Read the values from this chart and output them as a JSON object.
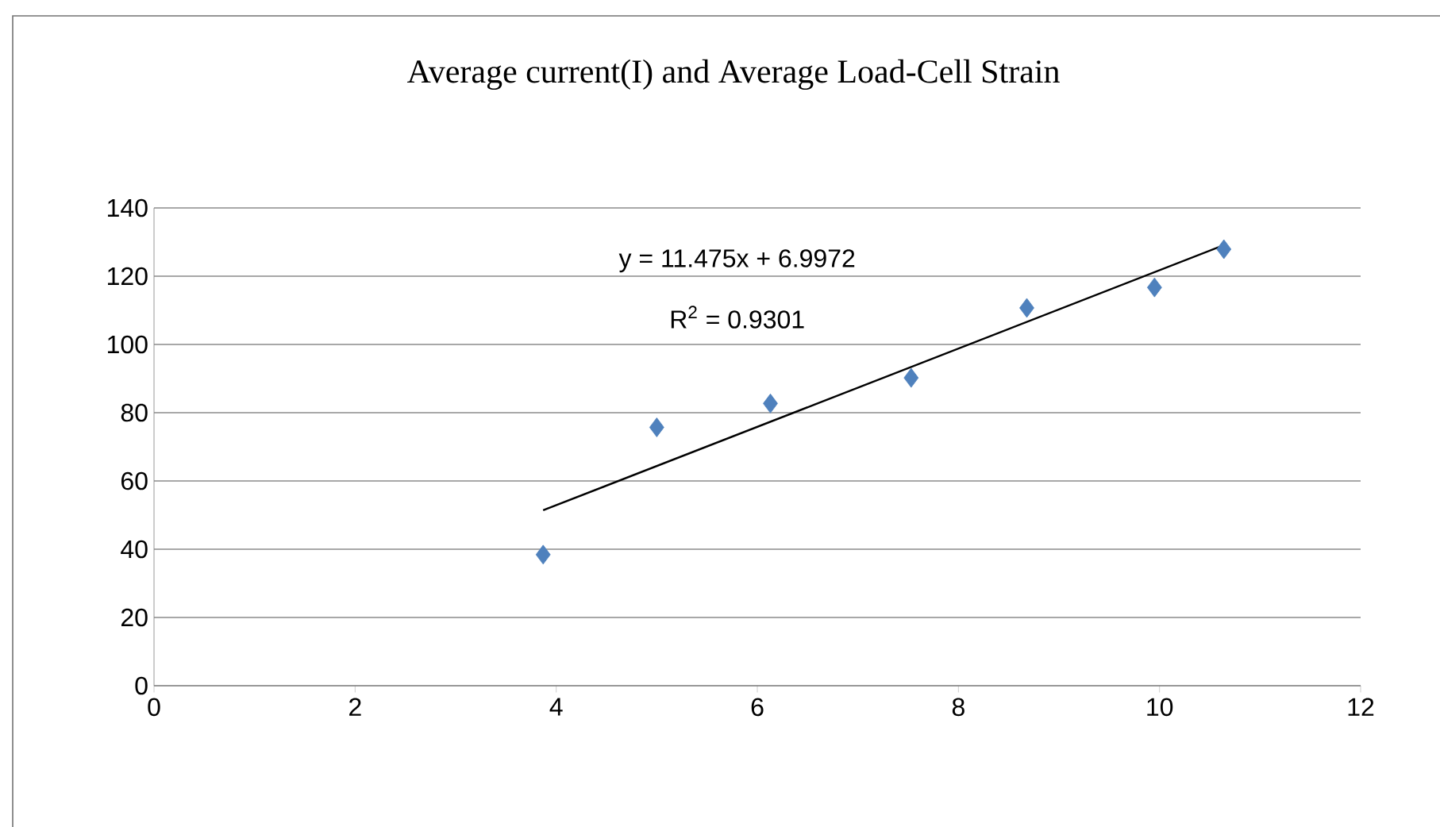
{
  "chart_data": {
    "type": "scatter",
    "title": "Average current(I) and Average Load-Cell Strain",
    "annotations": [
      "y = 11.475x + 6.9972",
      "R$^{2}$ = 0.9301"
    ],
    "series": [
      {
        "color": "#4f81bd",
        "marker": "diamond",
        "x": [
          3.87,
          5.0,
          6.13,
          7.53,
          8.68,
          9.95,
          10.64
        ],
        "values": [
          38.4,
          75.7,
          82.7,
          90.2,
          110.7,
          116.7,
          127.9
        ]
      },
      {
        "type": "line",
        "color": "#000000",
        "marker": "none",
        "x": [
          3.87,
          10.64
        ],
        "values": [
          51.4,
          129.1
        ]
      }
    ],
    "xlim": [
      0,
      12
    ],
    "xticks": [
      0,
      2,
      4,
      6,
      8,
      10,
      12
    ],
    "ylim": [
      0,
      140
    ],
    "yticks": [
      0,
      20,
      40,
      60,
      80,
      100,
      120,
      140
    ],
    "grid": "y"
  }
}
